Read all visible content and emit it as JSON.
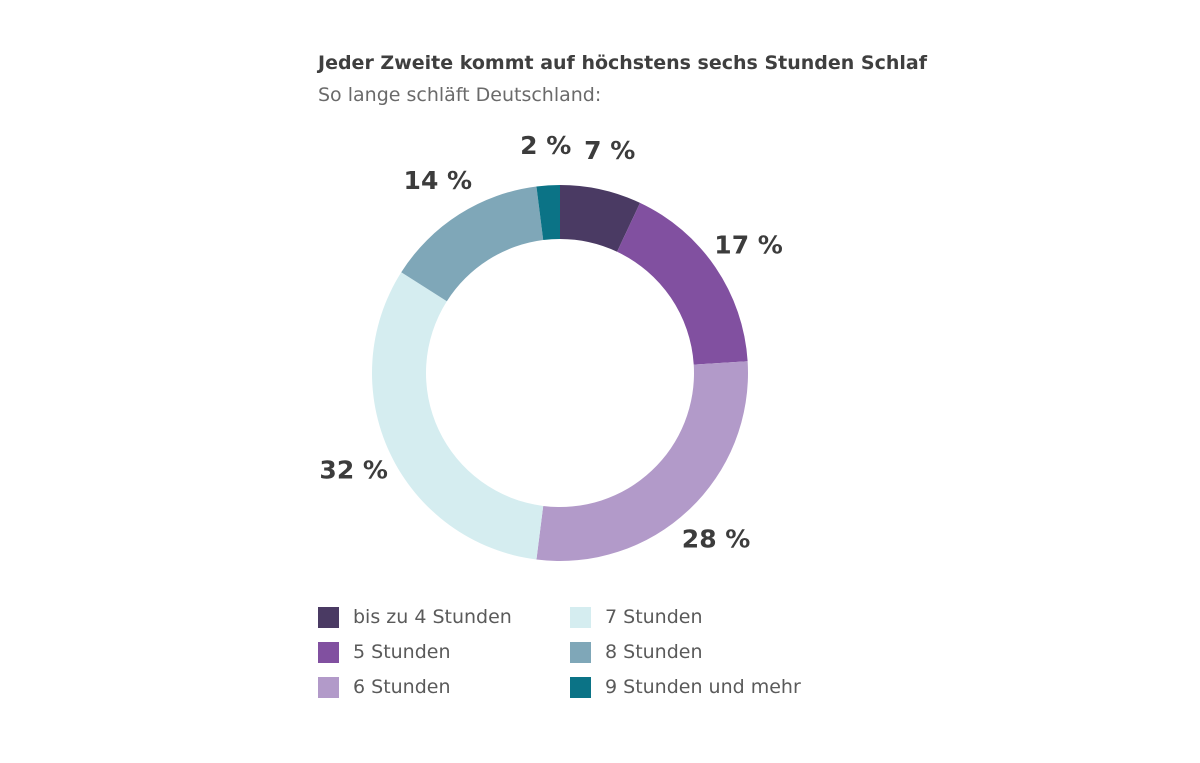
{
  "chart_data": {
    "type": "pie",
    "title": "Jeder Zweite kommt auf höchstens sechs Stunden Schlaf",
    "subtitle": "So lange schläft Deutschland:",
    "slices": [
      {
        "name": "bis zu 4 Stunden",
        "value": 7,
        "label": "7 %",
        "color": "#4a3a63"
      },
      {
        "name": "5 Stunden",
        "value": 17,
        "label": "17 %",
        "color": "#8150a0"
      },
      {
        "name": "6 Stunden",
        "value": 28,
        "label": "28 %",
        "color": "#b29ac9"
      },
      {
        "name": "7 Stunden",
        "value": 32,
        "label": "32 %",
        "color": "#d5edf0"
      },
      {
        "name": "8 Stunden",
        "value": 14,
        "label": "14 %",
        "color": "#7fa7b8"
      },
      {
        "name": "9 Stunden und mehr",
        "value": 2,
        "label": "2 %",
        "color": "#0b7386"
      }
    ],
    "legend": {
      "placement": "bottom",
      "columns": 2
    }
  }
}
